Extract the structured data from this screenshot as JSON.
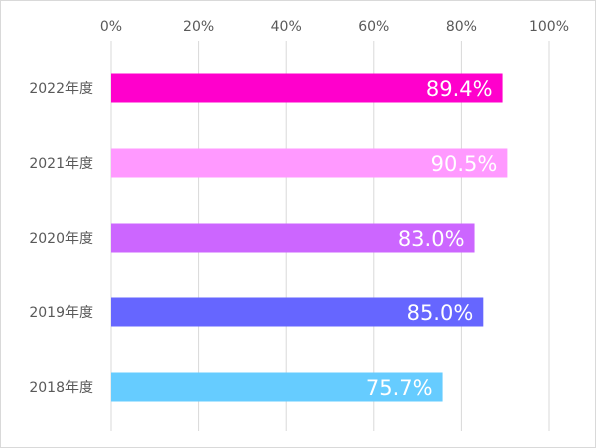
{
  "chart_data": {
    "type": "bar",
    "orientation": "horizontal",
    "title": "",
    "xlabel": "",
    "ylabel": "",
    "xlim": [
      0,
      100
    ],
    "x_ticks": [
      "0%",
      "20%",
      "40%",
      "60%",
      "80%",
      "100%"
    ],
    "x_tick_values": [
      0,
      20,
      40,
      60,
      80,
      100
    ],
    "x_axis_position": "top",
    "grid": true,
    "legend": false,
    "categories": [
      "2022年度",
      "2021年度",
      "2020年度",
      "2019年度",
      "2018年度"
    ],
    "values": [
      89.4,
      90.5,
      83.0,
      85.0,
      75.7
    ],
    "data_labels": [
      "89.4%",
      "90.5%",
      "83.0%",
      "85.0%",
      "75.7%"
    ],
    "colors": [
      "#ff00cc",
      "#ff99ff",
      "#cc66ff",
      "#6666ff",
      "#66ccff"
    ]
  }
}
